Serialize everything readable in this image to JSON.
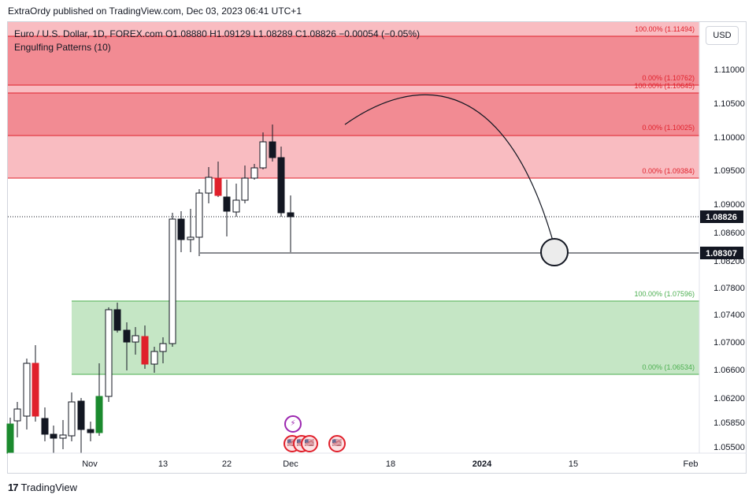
{
  "header": {
    "published_line": "ExtraOrdy published on TradingView.com, Dec 03, 2023 06:41 UTC+1"
  },
  "legend": {
    "symbol_line": "Euro / U.S. Dollar, 1D, FOREX.com  O1.08880  H1.09129  L1.08289  C1.08826  −0.00054 (−0.05%)",
    "indicator_line": "Engulfing Patterns (10)"
  },
  "currency_button": "USD",
  "price_axis": {
    "ticks": [
      "1.11000",
      "1.10500",
      "1.10000",
      "1.09500",
      "1.09000",
      "1.08600",
      "1.08200",
      "1.07800",
      "1.07400",
      "1.07000",
      "1.06600",
      "1.06200",
      "1.05850",
      "1.05500"
    ],
    "last_price_label": "1.08826",
    "line_price_label": "1.08307"
  },
  "time_axis": {
    "labels": [
      "Nov",
      "13",
      "22",
      "Dec",
      "18",
      "2024",
      "15",
      "Feb"
    ]
  },
  "zones": {
    "red_outer_top": "100.00% (1.11494)",
    "red_outer_bottom": "0.00% (1.10762)",
    "red_inner_top": "100.00% (1.10645)",
    "red_inner_bottom": "0.00% (1.10025)",
    "pink_bottom": "0.00% (1.09384)",
    "green_top": "100.00% (1.07596)",
    "green_bottom": "0.00% (1.06534)"
  },
  "colors": {
    "bull_candle": "#ffffff",
    "bear_candle": "#131722",
    "engulf_bull": "#1b8a2e",
    "engulf_bear": "#e0202b",
    "red_zone": "#f28b93",
    "pink_zone": "#f9bcc1",
    "green_zone": "#c5e6c5",
    "zone_line_red": "#e0202b",
    "zone_line_green": "#4caf50"
  },
  "events": {
    "flash_icon": "⚡",
    "us_flag_icon": "🇺🇸"
  },
  "footer": {
    "brand": "TradingView",
    "logo": "17"
  }
}
